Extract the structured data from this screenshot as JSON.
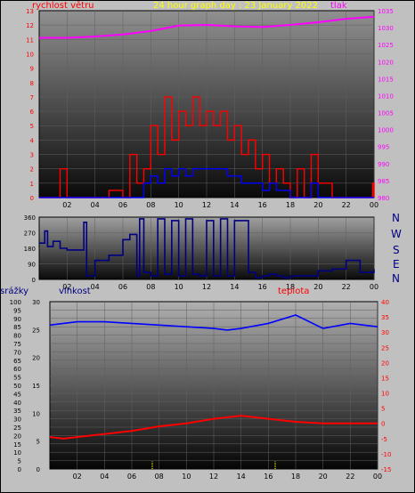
{
  "header": {
    "title": "24 hour graph day : 23 January 2022",
    "left_label": "rychlost větru",
    "right_label": "tlak"
  },
  "lower_header": {
    "rain_label": "srážky",
    "humidity_label": "vlhkost",
    "temperature_label": "teplota"
  },
  "compass": [
    "N",
    "W",
    "S",
    "E",
    "N"
  ],
  "colors": {
    "background": "#c0c0c0",
    "title": "#ffff00",
    "wind_label": "#ff0000",
    "pressure_label": "#ff00ff",
    "humidity": "#0000ff",
    "temperature": "#ff0000",
    "direction": "#000080",
    "rain": "#ffff00"
  },
  "chart_data": [
    {
      "type": "line",
      "name": "wind-pressure",
      "x_ticks": [
        "02",
        "04",
        "06",
        "08",
        "10",
        "12",
        "14",
        "16",
        "18",
        "20",
        "22",
        "00"
      ],
      "left_axis": {
        "ylim": [
          0,
          13
        ],
        "ticks": [
          "0",
          "1",
          "2",
          "3",
          "4",
          "5",
          "6",
          "7",
          "8",
          "9",
          "10",
          "11",
          "12",
          "13"
        ]
      },
      "right_axis": {
        "ylim": [
          980,
          1035
        ],
        "ticks": [
          "980",
          "985",
          "990",
          "995",
          "1000",
          "1005",
          "1010",
          "1015",
          "1020",
          "1025",
          "1030",
          "1035"
        ]
      },
      "series": [
        {
          "name": "tlak",
          "axis": "right",
          "x": [
            0,
            2,
            4,
            6,
            8,
            10,
            12,
            14,
            16,
            18,
            20,
            22,
            24
          ],
          "y": [
            1027,
            1027,
            1027.4,
            1028,
            1029,
            1030.6,
            1030.8,
            1030.4,
            1030.2,
            1030.8,
            1031.6,
            1032.6,
            1033.2
          ]
        },
        {
          "name": "wind_gust",
          "axis": "left",
          "x": [
            0,
            1,
            1.5,
            2,
            3,
            4,
            5,
            6,
            6.5,
            7,
            7.5,
            8,
            8.5,
            9,
            9.5,
            10,
            10.5,
            11,
            11.5,
            12,
            12.5,
            13,
            13.5,
            14,
            14.5,
            15,
            15.5,
            16,
            16.5,
            17,
            17.5,
            18,
            18.5,
            19,
            19.5,
            20,
            21,
            22,
            23,
            23.9,
            24
          ],
          "y": [
            0,
            0,
            2,
            0,
            0,
            0,
            0.5,
            0,
            3,
            1,
            2,
            5,
            3,
            7,
            4,
            6,
            5,
            7,
            5,
            6,
            5,
            6,
            4,
            5,
            3,
            4,
            2,
            3,
            1,
            2,
            1,
            0,
            2,
            0,
            3,
            1,
            0,
            0,
            0,
            1,
            0
          ]
        },
        {
          "name": "wind_avg",
          "axis": "left",
          "x": [
            0,
            6,
            7,
            7.5,
            8,
            8.5,
            9,
            9.5,
            10,
            10.5,
            11,
            11.5,
            12,
            12.5,
            13,
            13.5,
            14,
            14.5,
            15,
            15.5,
            16,
            16.5,
            17,
            17.5,
            18,
            19,
            19.5,
            20,
            24
          ],
          "y": [
            0,
            0,
            0,
            1,
            1.5,
            1,
            2,
            1.5,
            2,
            1.5,
            2,
            2,
            2,
            2,
            2,
            1.5,
            1.5,
            1,
            1,
            1,
            0.5,
            1,
            0.5,
            0.5,
            0,
            0,
            1,
            0,
            0
          ]
        }
      ]
    },
    {
      "type": "line",
      "name": "wind-direction",
      "x_ticks": [
        "02",
        "04",
        "06",
        "08",
        "10",
        "12",
        "14",
        "16",
        "18",
        "20",
        "22",
        "00"
      ],
      "ylim": [
        0,
        360
      ],
      "ticks": [
        "0",
        "90",
        "180",
        "270",
        "360"
      ],
      "series": [
        {
          "name": "direction",
          "x": [
            0,
            0.4,
            0.6,
            1,
            1.5,
            2,
            3,
            3.2,
            3.4,
            4,
            5,
            6,
            6.5,
            7,
            7.2,
            7.5,
            8,
            8.5,
            9,
            9.5,
            10,
            10.5,
            11,
            11.5,
            12,
            12.5,
            13,
            13.5,
            14,
            15,
            15.5,
            16,
            16.5,
            17,
            17.5,
            18,
            19,
            20,
            21,
            22,
            23,
            24
          ],
          "y": [
            210,
            280,
            190,
            220,
            180,
            170,
            170,
            330,
            20,
            110,
            140,
            230,
            260,
            20,
            350,
            40,
            20,
            350,
            30,
            340,
            20,
            350,
            30,
            20,
            340,
            20,
            350,
            20,
            340,
            40,
            10,
            20,
            30,
            20,
            10,
            20,
            20,
            50,
            60,
            110,
            40,
            60
          ]
        }
      ]
    },
    {
      "type": "line",
      "name": "rain-humidity-temperature",
      "x_ticks": [
        "02",
        "04",
        "06",
        "08",
        "10",
        "12",
        "14",
        "16",
        "18",
        "20",
        "22",
        "00"
      ],
      "rain_axis": {
        "ylim": [
          0,
          100
        ],
        "ticks": [
          "0",
          "5",
          "10",
          "15",
          "20",
          "25",
          "30",
          "35",
          "40",
          "45",
          "50",
          "55",
          "60",
          "65",
          "70",
          "75",
          "80",
          "85",
          "90",
          "95",
          "100"
        ]
      },
      "humidity_axis": {
        "ylim": [
          0,
          30
        ],
        "ticks": [
          "0",
          "5",
          "10",
          "15",
          "20",
          "25",
          "30"
        ]
      },
      "temperature_axis": {
        "ylim": [
          -15,
          40
        ],
        "ticks": [
          "-15",
          "-10",
          "-5",
          "0",
          "5",
          "10",
          "15",
          "20",
          "25",
          "30",
          "35",
          "40"
        ]
      },
      "series": [
        {
          "name": "vlhkost",
          "axis": "rain",
          "x": [
            0,
            2,
            4,
            6,
            8,
            10,
            12,
            13,
            14,
            16,
            18,
            20,
            22,
            24
          ],
          "y": [
            86,
            88,
            88,
            87,
            86,
            85,
            84,
            83,
            84,
            87,
            92,
            84,
            87,
            85
          ]
        },
        {
          "name": "teplota",
          "axis": "temperature",
          "x": [
            0,
            1,
            2,
            4,
            6,
            8,
            10,
            12,
            14,
            16,
            18,
            20,
            22,
            24
          ],
          "y": [
            -4.5,
            -5,
            -4.5,
            -3.5,
            -2.5,
            -1,
            0,
            1.5,
            2.5,
            1.5,
            0.5,
            0,
            0,
            0
          ]
        },
        {
          "name": "srážky",
          "axis": "rain",
          "x": [
            7.5,
            16.5
          ],
          "y": [
            4.5,
            4.5
          ]
        }
      ]
    }
  ]
}
